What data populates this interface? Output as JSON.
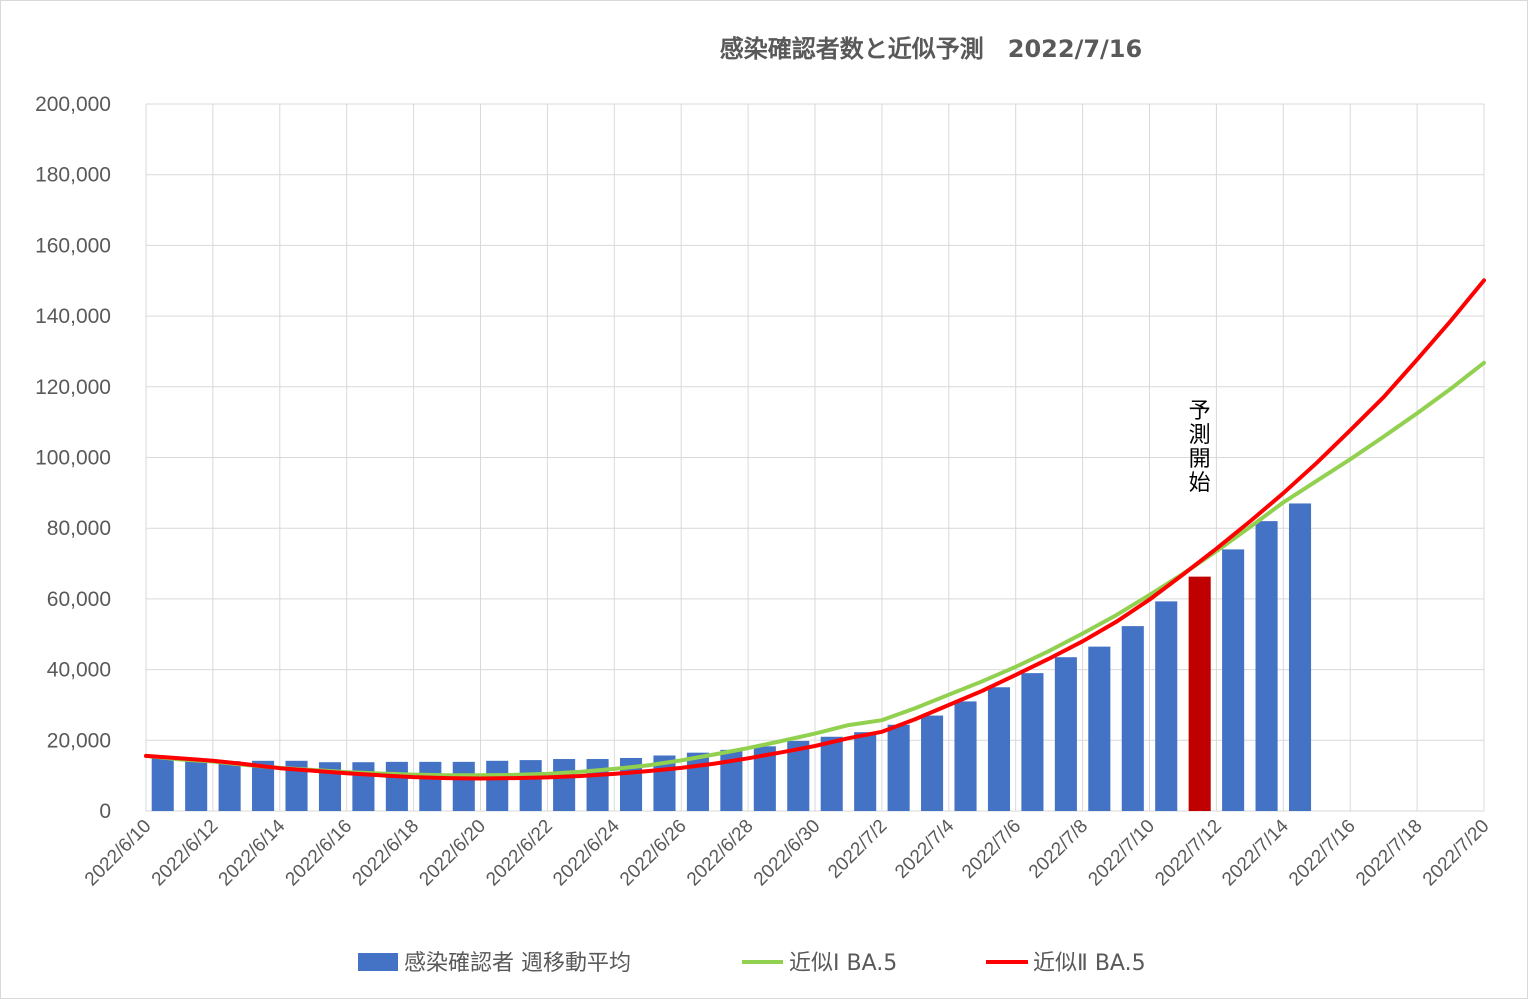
{
  "chart_data": {
    "type": "bar",
    "title": "感染確認者数と近似予測　2022/7/16",
    "xlabel": "",
    "ylabel": "",
    "ylim": [
      0,
      200000
    ],
    "yticks": [
      0,
      20000,
      40000,
      60000,
      80000,
      100000,
      120000,
      140000,
      160000,
      180000,
      200000
    ],
    "ytick_labels": [
      "0",
      "20,000",
      "40,000",
      "60,000",
      "80,000",
      "100,000",
      "120,000",
      "140,000",
      "160,000",
      "180,000",
      "200,000"
    ],
    "x_dates": [
      "2022/6/10",
      "2022/6/11",
      "2022/6/12",
      "2022/6/13",
      "2022/6/14",
      "2022/6/15",
      "2022/6/16",
      "2022/6/17",
      "2022/6/18",
      "2022/6/19",
      "2022/6/20",
      "2022/6/21",
      "2022/6/22",
      "2022/6/23",
      "2022/6/24",
      "2022/6/25",
      "2022/6/26",
      "2022/6/27",
      "2022/6/28",
      "2022/6/29",
      "2022/6/30",
      "2022/7/1",
      "2022/7/2",
      "2022/7/3",
      "2022/7/4",
      "2022/7/5",
      "2022/7/6",
      "2022/7/7",
      "2022/7/8",
      "2022/7/9",
      "2022/7/10",
      "2022/7/11",
      "2022/7/12",
      "2022/7/13",
      "2022/7/14",
      "2022/7/15",
      "2022/7/16",
      "2022/7/17",
      "2022/7/18",
      "2022/7/19",
      "2022/7/20"
    ],
    "xtick_labels": [
      "2022/6/10",
      "2022/6/12",
      "2022/6/14",
      "2022/6/16",
      "2022/6/18",
      "2022/6/20",
      "2022/6/22",
      "2022/6/24",
      "2022/6/26",
      "2022/6/28",
      "2022/6/30",
      "2022/7/2",
      "2022/7/4",
      "2022/7/6",
      "2022/7/8",
      "2022/7/10",
      "2022/7/12",
      "2022/7/14",
      "2022/7/16",
      "2022/7/18",
      "2022/7/20"
    ],
    "series": [
      {
        "name": "感染確認者 週移動平均",
        "kind": "bar",
        "color": "#4472c4",
        "highlight_color": "#c00000",
        "highlight_date": "2022/7/11",
        "values": [
          15200,
          14600,
          14100,
          14200,
          14200,
          13800,
          13800,
          13900,
          13900,
          13900,
          14200,
          14400,
          14700,
          14700,
          15000,
          15700,
          16500,
          17300,
          18300,
          19800,
          21000,
          22300,
          24400,
          27000,
          31000,
          35000,
          39000,
          43500,
          46500,
          52300,
          59300,
          66300,
          74000,
          82000,
          87000,
          null,
          null,
          null,
          null,
          null,
          null
        ]
      },
      {
        "name": "近似Ⅰ BA.5",
        "kind": "line",
        "color": "#92d050",
        "values": [
          15600,
          14600,
          14000,
          13000,
          12200,
          11600,
          11000,
          10600,
          10300,
          10100,
          10100,
          10200,
          10500,
          11100,
          11900,
          12900,
          14300,
          16000,
          17800,
          19800,
          21900,
          24300,
          25700,
          29100,
          32900,
          36700,
          40800,
          45300,
          50200,
          55400,
          61100,
          67100,
          73500,
          80300,
          87300,
          93400,
          99500,
          105900,
          112500,
          119400,
          126800
        ]
      },
      {
        "name": "近似Ⅱ BA.5",
        "kind": "line",
        "color": "#ff0000",
        "values": [
          15600,
          14900,
          14200,
          13200,
          12100,
          11400,
          10700,
          10100,
          9600,
          9300,
          9200,
          9300,
          9500,
          9900,
          10500,
          11300,
          12200,
          13400,
          14900,
          16600,
          18400,
          20600,
          22400,
          26000,
          30000,
          34000,
          38500,
          43100,
          48000,
          53500,
          59800,
          66900,
          74200,
          81900,
          89900,
          98500,
          107700,
          117100,
          127700,
          138600,
          150100
        ]
      }
    ],
    "annotations": [
      {
        "text": "予測開始",
        "x": "2022/7/11",
        "orientation": "vertical"
      }
    ],
    "legend": {
      "placement": "bottom"
    },
    "grid": true
  }
}
